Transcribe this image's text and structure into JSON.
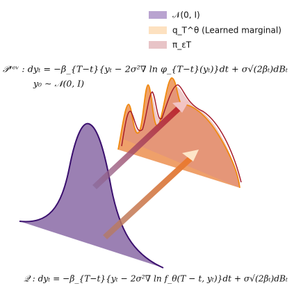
{
  "legend": {
    "items": [
      {
        "label": "𝒩(0, I)",
        "color": "#b9a3d0"
      },
      {
        "label": "q_T^θ (Learned marginal)",
        "color": "#fde1c0"
      },
      {
        "label": "π_εT",
        "color": "#e8c4c7"
      }
    ]
  },
  "equations": {
    "reverse": "𝒫ʳᵉᵛ : dyₜ = −β_{T−t}{yₜ − 2σ²∇ ln φ_{T−t}(yₜ)}dt + σ√(2βₜ)dBₜ",
    "init": "y₀ ∼ 𝒩(0, I)",
    "forward": "𝒬 : dyₜ = −β_{T−t}{yₜ − 2σ²∇ ln f_θ(T − t, yₜ)}dt + σ√(2βₜ)dBₜ"
  }
}
